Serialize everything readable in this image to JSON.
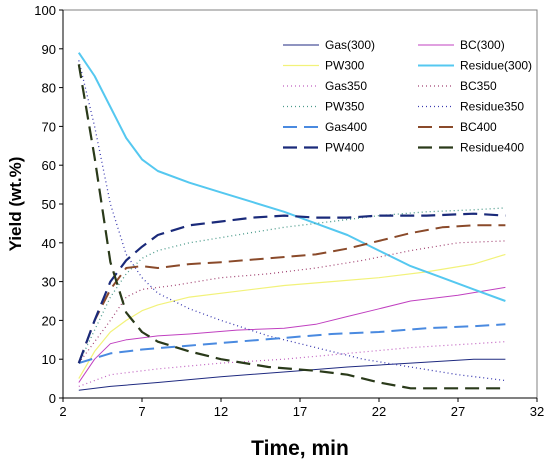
{
  "chart_data": {
    "type": "line",
    "title": "",
    "xlabel": "Time, min",
    "ylabel": "Yield (wt.%)",
    "xlim": [
      2,
      32
    ],
    "ylim": [
      0,
      100
    ],
    "x_ticks": [
      2,
      7,
      12,
      17,
      22,
      27,
      32
    ],
    "y_ticks": [
      0,
      10,
      20,
      30,
      40,
      50,
      60,
      70,
      80,
      90,
      100
    ],
    "grid": false,
    "legend_position": "top-right",
    "series": [
      {
        "name": "Gas(300)",
        "color": "#1f2a80",
        "dash": "solid",
        "width": 1,
        "points": [
          [
            3,
            2
          ],
          [
            5,
            3
          ],
          [
            8,
            4
          ],
          [
            12,
            5.5
          ],
          [
            17,
            7
          ],
          [
            20,
            8
          ],
          [
            24,
            9
          ],
          [
            28,
            10
          ],
          [
            30,
            10
          ]
        ]
      },
      {
        "name": "BC(300)",
        "color": "#c040c0",
        "dash": "solid",
        "width": 1,
        "points": [
          [
            3,
            4
          ],
          [
            4,
            10
          ],
          [
            5,
            14
          ],
          [
            6,
            15
          ],
          [
            7,
            15.5
          ],
          [
            8,
            16
          ],
          [
            10,
            16.5
          ],
          [
            13,
            17.5
          ],
          [
            16,
            18
          ],
          [
            18,
            19
          ],
          [
            20,
            21
          ],
          [
            22,
            23
          ],
          [
            24,
            25
          ],
          [
            27,
            26.5
          ],
          [
            30,
            28.5
          ]
        ]
      },
      {
        "name": "PW300",
        "color": "#f2f27a",
        "dash": "solid",
        "width": 1.2,
        "points": [
          [
            3,
            5
          ],
          [
            4,
            12
          ],
          [
            5,
            17
          ],
          [
            6,
            20
          ],
          [
            7,
            22.5
          ],
          [
            8,
            24
          ],
          [
            10,
            26
          ],
          [
            13,
            27.5
          ],
          [
            16,
            29
          ],
          [
            19,
            30
          ],
          [
            22,
            31
          ],
          [
            25,
            32.5
          ],
          [
            28,
            34.5
          ],
          [
            30,
            37
          ]
        ]
      },
      {
        "name": "Residue(300)",
        "color": "#55c8f0",
        "dash": "solid",
        "width": 2,
        "points": [
          [
            3,
            89
          ],
          [
            4,
            83
          ],
          [
            5,
            75
          ],
          [
            6,
            67
          ],
          [
            7,
            61.5
          ],
          [
            8,
            58.5
          ],
          [
            10,
            55.5
          ],
          [
            12,
            53
          ],
          [
            14,
            50.5
          ],
          [
            16,
            48
          ],
          [
            18,
            45
          ],
          [
            20,
            42
          ],
          [
            22,
            38
          ],
          [
            24,
            34
          ],
          [
            26,
            31
          ],
          [
            28,
            28
          ],
          [
            30,
            25
          ]
        ]
      },
      {
        "name": "Gas350",
        "color": "#c060c0",
        "dash": "1 3",
        "width": 1.2,
        "points": [
          [
            3,
            3
          ],
          [
            5,
            6
          ],
          [
            8,
            7.5
          ],
          [
            12,
            9
          ],
          [
            16,
            10
          ],
          [
            20,
            11.5
          ],
          [
            24,
            13
          ],
          [
            28,
            14
          ],
          [
            30,
            14.5
          ]
        ]
      },
      {
        "name": "BC350",
        "color": "#a04070",
        "dash": "1 3",
        "width": 1.2,
        "points": [
          [
            3,
            9
          ],
          [
            5,
            20
          ],
          [
            6,
            26
          ],
          [
            7,
            28
          ],
          [
            9,
            29
          ],
          [
            12,
            31
          ],
          [
            15,
            32
          ],
          [
            18,
            33.5
          ],
          [
            21,
            35.5
          ],
          [
            24,
            38
          ],
          [
            27,
            40
          ],
          [
            30,
            40.5
          ]
        ]
      },
      {
        "name": "PW350",
        "color": "#4a9a8a",
        "dash": "1 3",
        "width": 1.3,
        "points": [
          [
            3,
            9
          ],
          [
            5,
            26
          ],
          [
            6,
            32
          ],
          [
            7,
            36
          ],
          [
            8,
            38
          ],
          [
            10,
            40
          ],
          [
            13,
            42
          ],
          [
            16,
            44
          ],
          [
            19,
            45.5
          ],
          [
            22,
            47
          ],
          [
            25,
            48
          ],
          [
            28,
            48.5
          ],
          [
            30,
            49
          ]
        ]
      },
      {
        "name": "Residue350",
        "color": "#3a3ab0",
        "dash": "1 3",
        "width": 1.3,
        "points": [
          [
            3,
            87
          ],
          [
            4,
            70
          ],
          [
            5,
            50
          ],
          [
            6,
            37
          ],
          [
            7,
            31
          ],
          [
            8,
            27
          ],
          [
            10,
            23
          ],
          [
            12,
            20
          ],
          [
            15,
            16
          ],
          [
            18,
            13
          ],
          [
            21,
            10
          ],
          [
            24,
            8
          ],
          [
            27,
            6
          ],
          [
            30,
            4.5
          ]
        ]
      },
      {
        "name": "Gas400",
        "color": "#4a8ae0",
        "dash": "14 7",
        "width": 2,
        "points": [
          [
            3,
            9
          ],
          [
            5,
            11.5
          ],
          [
            7,
            12.5
          ],
          [
            10,
            13.5
          ],
          [
            13,
            14.5
          ],
          [
            16,
            15.5
          ],
          [
            19,
            16.5
          ],
          [
            22,
            17
          ],
          [
            25,
            18
          ],
          [
            28,
            18.5
          ],
          [
            30,
            19
          ]
        ]
      },
      {
        "name": "BC400",
        "color": "#8a4a2a",
        "dash": "14 7",
        "width": 2,
        "points": [
          [
            3,
            9
          ],
          [
            4,
            20
          ],
          [
            5,
            28
          ],
          [
            6,
            33.5
          ],
          [
            7,
            34
          ],
          [
            8,
            33.5
          ],
          [
            10,
            34.5
          ],
          [
            12,
            35
          ],
          [
            15,
            36
          ],
          [
            18,
            37
          ],
          [
            20,
            38.5
          ],
          [
            22,
            40.5
          ],
          [
            24,
            42.5
          ],
          [
            26,
            44
          ],
          [
            28,
            44.5
          ],
          [
            30,
            44.5
          ]
        ]
      },
      {
        "name": "PW400",
        "color": "#1a2a7a",
        "dash": "14 7",
        "width": 2.2,
        "points": [
          [
            3,
            9
          ],
          [
            4,
            20
          ],
          [
            5,
            30
          ],
          [
            6,
            35.5
          ],
          [
            7,
            39
          ],
          [
            8,
            42
          ],
          [
            10,
            44.5
          ],
          [
            12,
            45.5
          ],
          [
            14,
            46.5
          ],
          [
            16,
            47
          ],
          [
            18,
            46.5
          ],
          [
            20,
            46.5
          ],
          [
            22,
            47
          ],
          [
            25,
            47
          ],
          [
            28,
            47.5
          ],
          [
            30,
            47
          ]
        ]
      },
      {
        "name": "Residue400",
        "color": "#2a3a1a",
        "dash": "14 7",
        "width": 2.2,
        "points": [
          [
            3,
            86
          ],
          [
            4,
            62
          ],
          [
            5,
            35
          ],
          [
            6,
            22
          ],
          [
            7,
            17
          ],
          [
            8,
            14.5
          ],
          [
            10,
            12
          ],
          [
            12,
            10
          ],
          [
            15,
            8
          ],
          [
            18,
            7
          ],
          [
            20,
            6
          ],
          [
            22,
            4
          ],
          [
            24,
            2.5
          ],
          [
            27,
            2.5
          ],
          [
            30,
            2.5
          ]
        ]
      }
    ]
  }
}
